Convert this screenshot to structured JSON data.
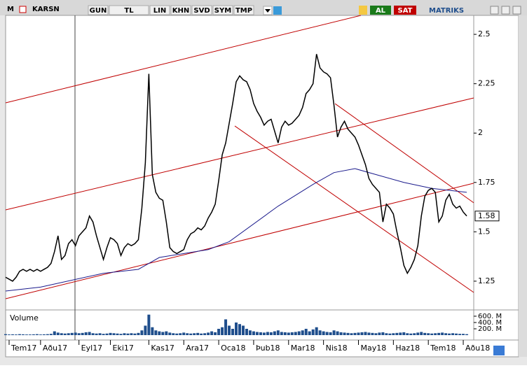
{
  "toolbar": {
    "app": "M",
    "symbol": "KARSN",
    "buttons": [
      "GUN",
      "TL",
      "LIN",
      "KHN",
      "SVD",
      "SYM",
      "TMP"
    ],
    "buy": "AL",
    "sell": "SAT",
    "brand": "MATRIKS"
  },
  "chart_data": [
    {
      "type": "line",
      "color": "#000000",
      "values": [
        1.27,
        1.26,
        1.25,
        1.27,
        1.3,
        1.31,
        1.3,
        1.31,
        1.3,
        1.31,
        1.3,
        1.31,
        1.32,
        1.34,
        1.4,
        1.48,
        1.36,
        1.38,
        1.44,
        1.46,
        1.43,
        1.48,
        1.5,
        1.52,
        1.58,
        1.55,
        1.48,
        1.42,
        1.36,
        1.42,
        1.47,
        1.46,
        1.44,
        1.38,
        1.42,
        1.44,
        1.43,
        1.44,
        1.46,
        1.62,
        1.85,
        2.3,
        1.79,
        1.7,
        1.67,
        1.66,
        1.55,
        1.42,
        1.4,
        1.39,
        1.4,
        1.41,
        1.46,
        1.49,
        1.5,
        1.52,
        1.51,
        1.53,
        1.57,
        1.6,
        1.64,
        1.76,
        1.89,
        1.95,
        2.05,
        2.15,
        2.26,
        2.29,
        2.27,
        2.26,
        2.22,
        2.15,
        2.11,
        2.08,
        2.04,
        2.06,
        2.07,
        2.01,
        1.95,
        2.03,
        2.06,
        2.04,
        2.05,
        2.07,
        2.09,
        2.13,
        2.2,
        2.22,
        2.25,
        2.4,
        2.33,
        2.31,
        2.3,
        2.28,
        2.14,
        1.98,
        2.03,
        2.06,
        2.02,
        2.0,
        1.98,
        1.94,
        1.89,
        1.84,
        1.77,
        1.74,
        1.72,
        1.7,
        1.55,
        1.64,
        1.62,
        1.59,
        1.5,
        1.42,
        1.33,
        1.29,
        1.32,
        1.36,
        1.43,
        1.58,
        1.68,
        1.71,
        1.72,
        1.7,
        1.55,
        1.58,
        1.66,
        1.69,
        1.64,
        1.62,
        1.63,
        1.6,
        1.58
      ],
      "average": {
        "color": "#1a1a8c",
        "x": [
          0,
          10,
          28,
          38,
          44,
          58,
          64,
          78,
          88,
          94,
          100,
          106,
          114,
          122,
          132
        ],
        "values": [
          1.2,
          1.22,
          1.29,
          1.31,
          1.37,
          1.41,
          1.45,
          1.63,
          1.74,
          1.8,
          1.82,
          1.79,
          1.75,
          1.72,
          1.7
        ]
      },
      "trendlines": {
        "color": "#c00000",
        "lines": [
          {
            "x": [
              0,
              101.7
            ],
            "values": [
              2.153,
              2.596
            ]
          },
          {
            "x": [
              0,
              134
            ],
            "values": [
              1.611,
              2.178
            ]
          },
          {
            "x": [
              0,
              134
            ],
            "values": [
              1.161,
              1.746
            ]
          },
          {
            "x": [
              65.6,
              134
            ],
            "values": [
              2.036,
              1.193
            ]
          },
          {
            "x": [
              94.3,
              134
            ],
            "values": [
              2.149,
              1.647
            ]
          }
        ]
      },
      "xlim": [
        0,
        134
      ],
      "ylim": [
        1.115,
        2.596
      ],
      "yticks": [
        1.25,
        1.5,
        1.75,
        2,
        2.25,
        2.5
      ],
      "xticks": [
        {
          "value": 1,
          "label": "Tem17"
        },
        {
          "value": 10,
          "label": "Aðu17"
        },
        {
          "value": 21,
          "label": "Eyl17"
        },
        {
          "value": 30,
          "label": "Eki17"
        },
        {
          "value": 41,
          "label": "Kas17"
        },
        {
          "value": 51,
          "label": "Ara17"
        },
        {
          "value": 61,
          "label": "Oca18"
        },
        {
          "value": 71,
          "label": "Þub18"
        },
        {
          "value": 81,
          "label": "Mar18"
        },
        {
          "value": 91,
          "label": "Nis18"
        },
        {
          "value": 101,
          "label": "May18"
        },
        {
          "value": 111,
          "label": "Haz18"
        },
        {
          "value": 121,
          "label": "Tem18"
        },
        {
          "value": 131,
          "label": "Aðu18"
        }
      ]
    },
    {
      "type": "bar",
      "title": "Volume",
      "color": "#1f4e8c",
      "values": [
        30,
        20,
        25,
        20,
        30,
        25,
        20,
        20,
        25,
        30,
        20,
        25,
        30,
        40,
        120,
        80,
        60,
        50,
        60,
        70,
        80,
        60,
        70,
        90,
        100,
        60,
        50,
        60,
        40,
        50,
        70,
        60,
        50,
        40,
        60,
        50,
        60,
        50,
        70,
        150,
        300,
        650,
        250,
        150,
        120,
        100,
        120,
        80,
        60,
        50,
        60,
        80,
        60,
        50,
        60,
        70,
        50,
        60,
        80,
        120,
        90,
        200,
        250,
        500,
        300,
        200,
        400,
        350,
        300,
        200,
        150,
        120,
        100,
        90,
        80,
        100,
        90,
        120,
        150,
        100,
        90,
        80,
        90,
        100,
        120,
        150,
        200,
        120,
        180,
        250,
        150,
        120,
        100,
        90,
        150,
        120,
        90,
        80,
        70,
        60,
        70,
        80,
        90,
        100,
        80,
        70,
        60,
        80,
        90,
        60,
        50,
        60,
        70,
        80,
        90,
        60,
        50,
        60,
        80,
        100,
        70,
        60,
        50,
        60,
        70,
        80,
        60,
        50,
        60,
        50,
        40,
        40,
        30
      ],
      "ylim": [
        0,
        710
      ],
      "yticks": [
        {
          "value": 200,
          "label": "200. M"
        },
        {
          "value": 400,
          "label": "400. M"
        },
        {
          "value": 600,
          "label": "600. M"
        }
      ]
    }
  ]
}
